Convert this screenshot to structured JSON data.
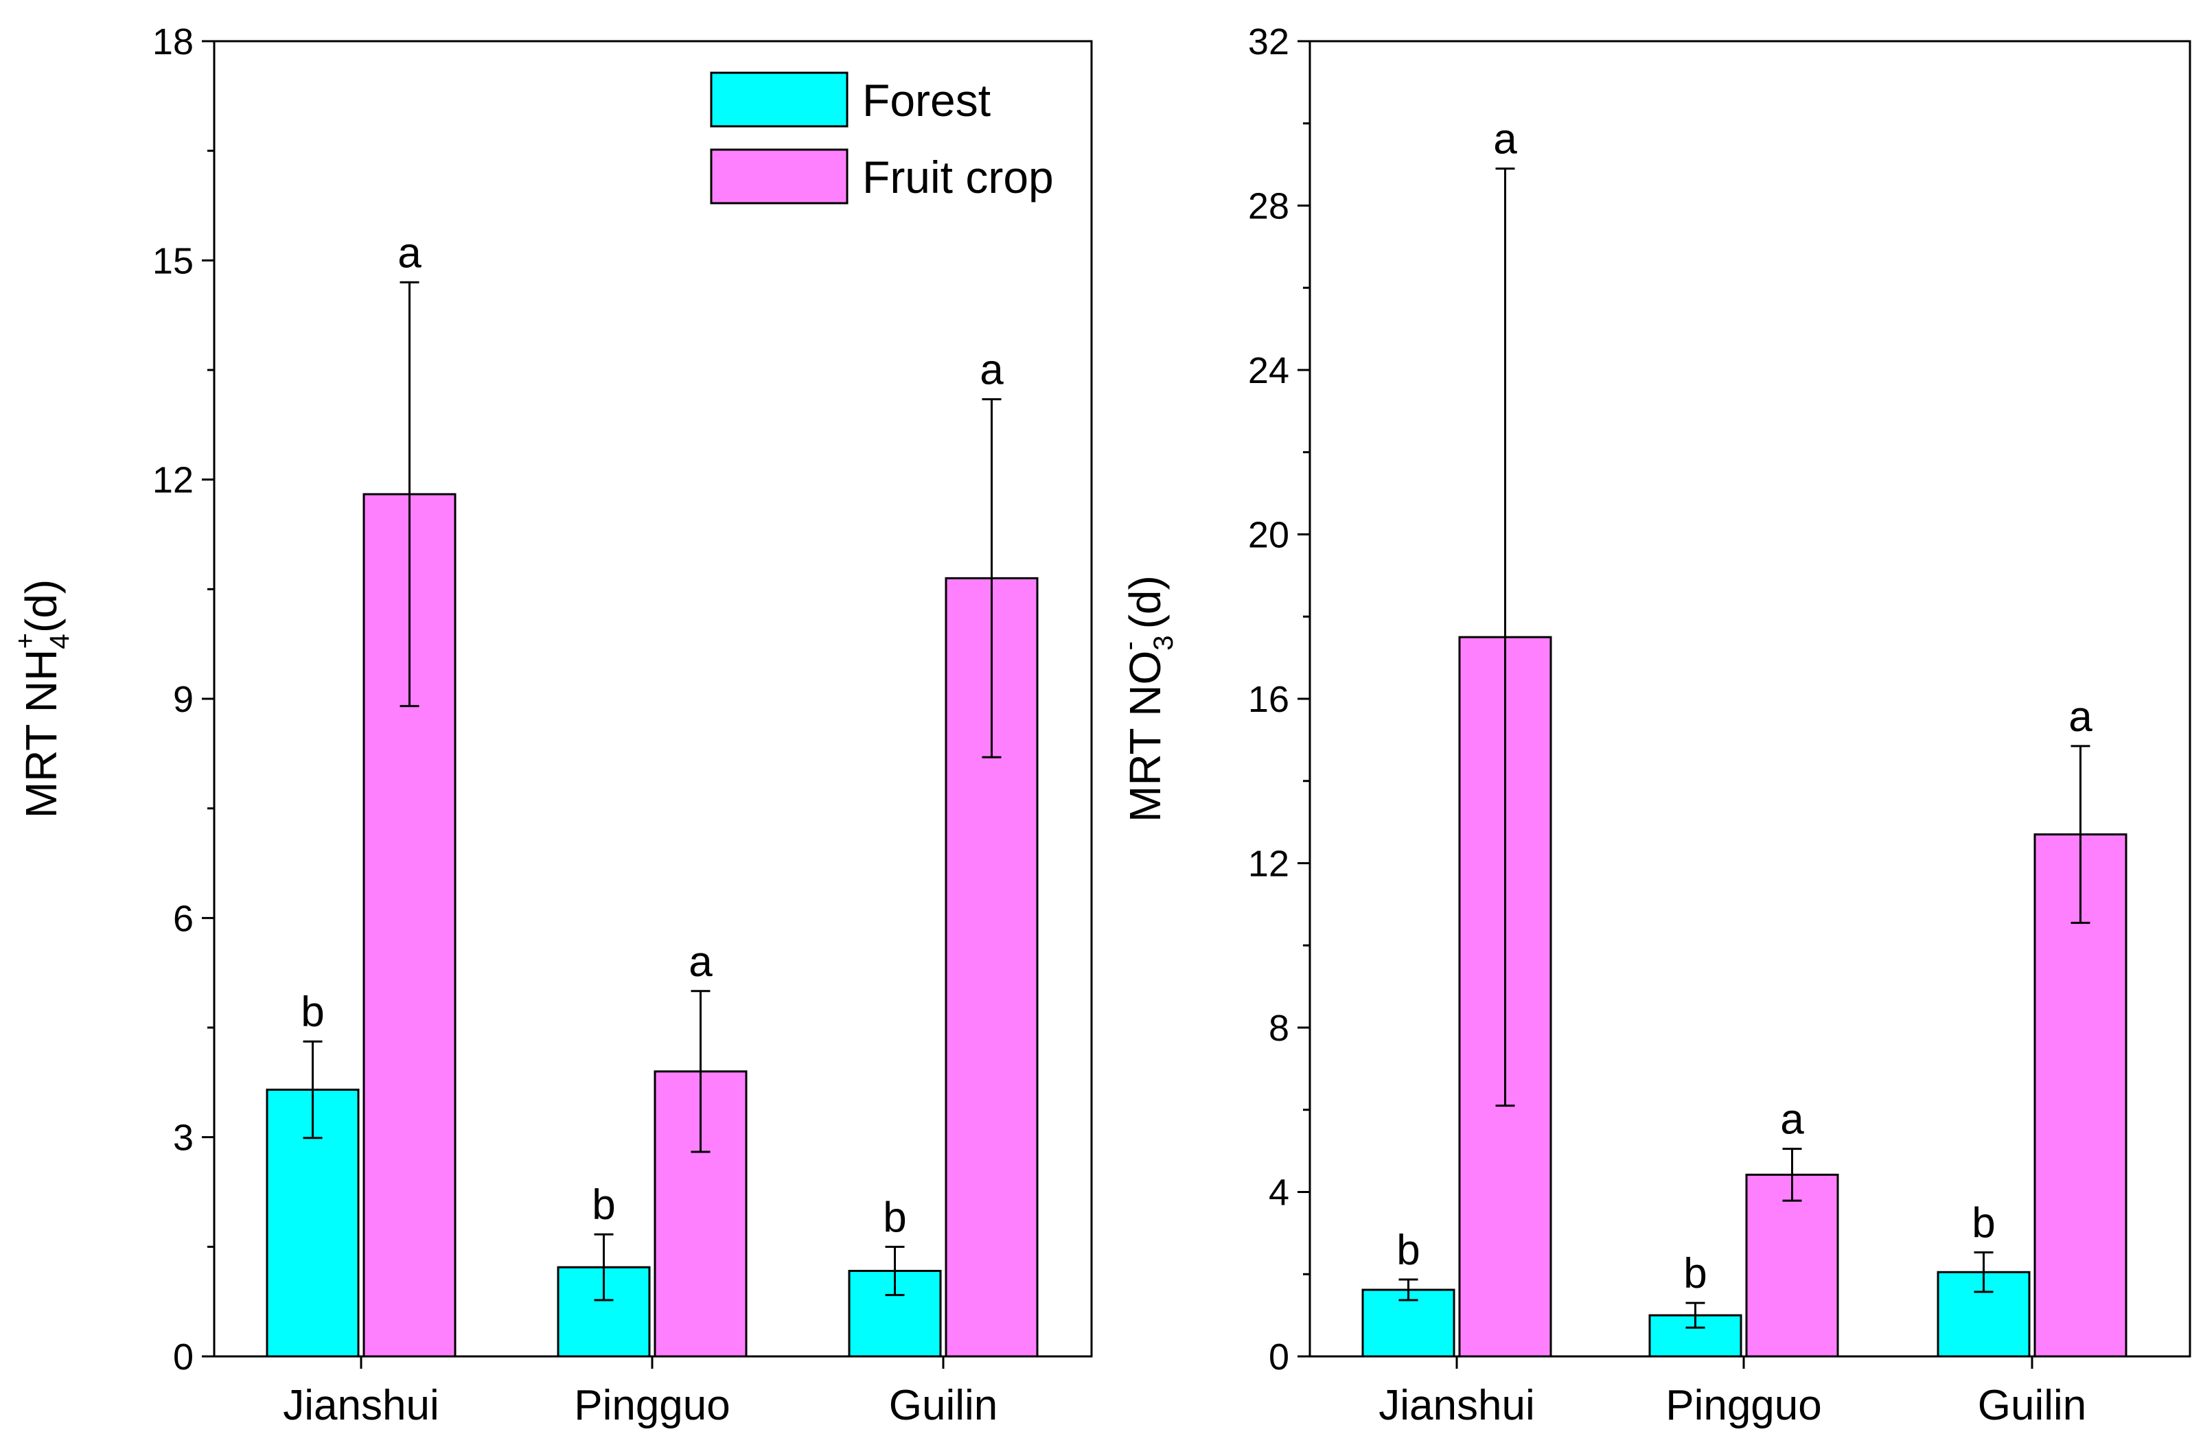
{
  "colors": {
    "forest": "#00FFFF",
    "fruit_crop": "#FF80FF",
    "axis": "#000000"
  },
  "legend": [
    {
      "label": "Forest",
      "color": "#00FFFF"
    },
    {
      "label": "Fruit crop",
      "color": "#FF80FF"
    }
  ],
  "chart_data": [
    {
      "type": "bar",
      "title": "",
      "ylabel": {
        "prefix": "MRT NH",
        "sub": "4",
        "sup": "+",
        "suffix": "(d)"
      },
      "ylim": [
        0,
        18
      ],
      "yticks": [
        "0",
        "3",
        "6",
        "9",
        "12",
        "15",
        "18"
      ],
      "categories": [
        "Jianshui",
        "Pingguo",
        "Guilin"
      ],
      "legend_position": "top-right",
      "series": [
        {
          "name": "Forest",
          "color": "#00FFFF",
          "values": [
            3.65,
            1.22,
            1.17
          ],
          "errors": [
            0.66,
            0.45,
            0.33
          ],
          "letters": [
            "b",
            "b",
            "b"
          ]
        },
        {
          "name": "Fruit crop",
          "color": "#FF80FF",
          "values": [
            11.8,
            3.9,
            10.65
          ],
          "errors": [
            2.9,
            1.1,
            2.45
          ],
          "letters": [
            "a",
            "a",
            "a"
          ]
        }
      ]
    },
    {
      "type": "bar",
      "title": "",
      "ylabel": {
        "prefix": "MRT NO",
        "sub": "3",
        "sup": "-",
        "suffix": " (d)"
      },
      "ylim": [
        0,
        32
      ],
      "yticks": [
        "0",
        "4",
        "8",
        "12",
        "16",
        "20",
        "24",
        "28",
        "32"
      ],
      "categories": [
        "Jianshui",
        "Pingguo",
        "Guilin"
      ],
      "series": [
        {
          "name": "Forest",
          "color": "#00FFFF",
          "values": [
            1.62,
            1.0,
            2.05
          ],
          "errors": [
            0.25,
            0.3,
            0.48
          ],
          "letters": [
            "b",
            "b",
            "b"
          ]
        },
        {
          "name": "Fruit crop",
          "color": "#FF80FF",
          "values": [
            17.5,
            4.42,
            12.7
          ],
          "errors": [
            11.4,
            0.63,
            2.15
          ],
          "letters": [
            "a",
            "a",
            "a"
          ]
        }
      ]
    }
  ]
}
